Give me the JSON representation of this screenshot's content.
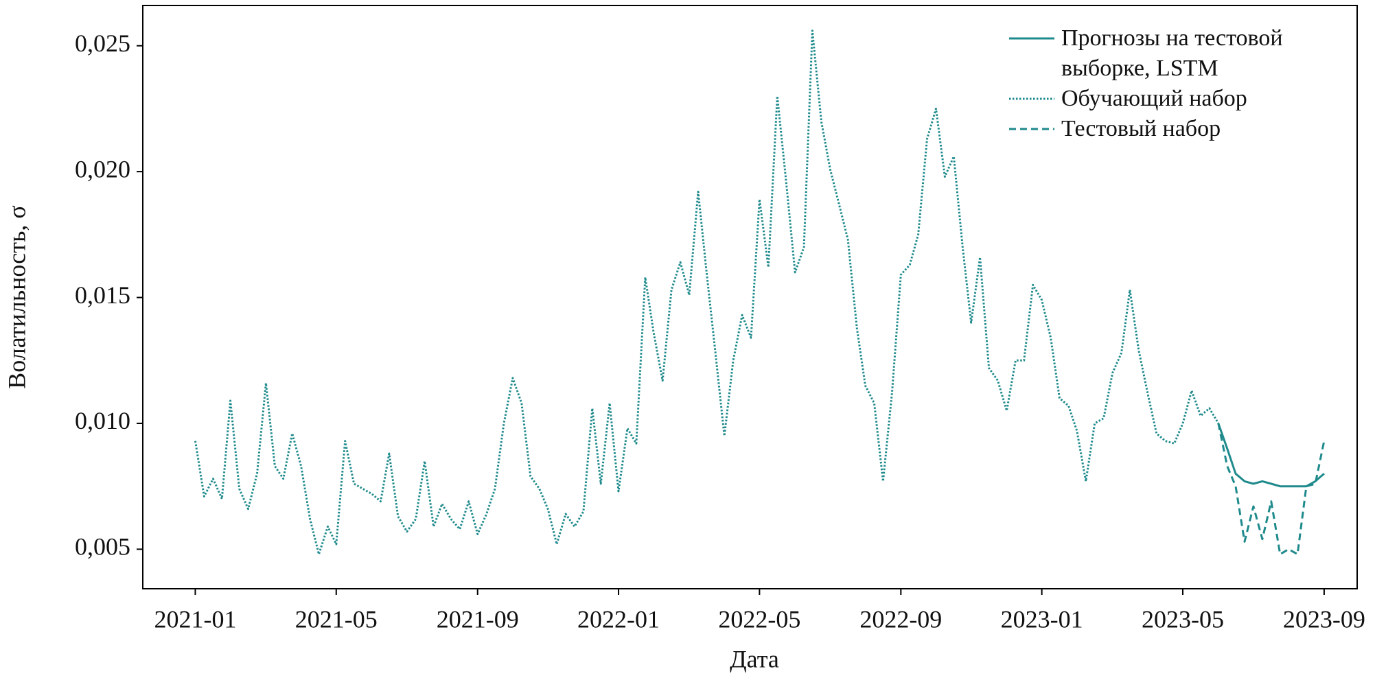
{
  "chart_data": {
    "type": "line",
    "xlabel": "Дата",
    "ylabel": "Волатильность, σ",
    "xlim": [
      2020.876,
      2023.745
    ],
    "ylim": [
      0.00343,
      0.0266
    ],
    "xticks": [
      {
        "value": 2021.0,
        "label": "2021-01"
      },
      {
        "value": 2021.333,
        "label": "2021-05"
      },
      {
        "value": 2021.667,
        "label": "2021-09"
      },
      {
        "value": 2022.0,
        "label": "2022-01"
      },
      {
        "value": 2022.333,
        "label": "2022-05"
      },
      {
        "value": 2022.667,
        "label": "2022-09"
      },
      {
        "value": 2023.0,
        "label": "2023-01"
      },
      {
        "value": 2023.333,
        "label": "2023-05"
      },
      {
        "value": 2023.667,
        "label": "2023-09"
      }
    ],
    "yticks": [
      {
        "value": 0.005,
        "label": "0,005"
      },
      {
        "value": 0.01,
        "label": "0,010"
      },
      {
        "value": 0.015,
        "label": "0,015"
      },
      {
        "value": 0.02,
        "label": "0,020"
      },
      {
        "value": 0.025,
        "label": "0,025"
      }
    ],
    "grid": false,
    "legend": "upper right",
    "series": [
      {
        "name": "Прогнозы на тестовой выборке, LSTM",
        "color": "#1f8a8c",
        "style": "solid",
        "x": [
          2023.417,
          2023.438,
          2023.458,
          2023.479,
          2023.5,
          2023.521,
          2023.542,
          2023.563,
          2023.583,
          2023.604,
          2023.625,
          2023.646,
          2023.667
        ],
        "values": [
          0.01,
          0.009,
          0.008,
          0.0077,
          0.0076,
          0.0077,
          0.0076,
          0.0075,
          0.0075,
          0.0075,
          0.0075,
          0.0077,
          0.008
        ]
      },
      {
        "name": "Обучающий набор",
        "color": "#1f8a8c",
        "style": "dotted",
        "x": [
          2021.0,
          2021.021,
          2021.042,
          2021.063,
          2021.083,
          2021.104,
          2021.125,
          2021.146,
          2021.167,
          2021.188,
          2021.208,
          2021.229,
          2021.25,
          2021.271,
          2021.292,
          2021.313,
          2021.333,
          2021.354,
          2021.375,
          2021.396,
          2021.417,
          2021.438,
          2021.458,
          2021.479,
          2021.5,
          2021.521,
          2021.542,
          2021.563,
          2021.583,
          2021.604,
          2021.625,
          2021.646,
          2021.667,
          2021.688,
          2021.708,
          2021.729,
          2021.75,
          2021.771,
          2021.792,
          2021.813,
          2021.833,
          2021.854,
          2021.875,
          2021.896,
          2021.917,
          2021.938,
          2021.958,
          2021.979,
          2022.0,
          2022.021,
          2022.042,
          2022.063,
          2022.083,
          2022.104,
          2022.125,
          2022.146,
          2022.167,
          2022.188,
          2022.208,
          2022.229,
          2022.25,
          2022.271,
          2022.292,
          2022.313,
          2022.333,
          2022.354,
          2022.375,
          2022.396,
          2022.417,
          2022.438,
          2022.458,
          2022.479,
          2022.5,
          2022.521,
          2022.542,
          2022.563,
          2022.583,
          2022.604,
          2022.625,
          2022.646,
          2022.667,
          2022.688,
          2022.708,
          2022.729,
          2022.75,
          2022.771,
          2022.792,
          2022.813,
          2022.833,
          2022.854,
          2022.875,
          2022.896,
          2022.917,
          2022.938,
          2022.958,
          2022.979,
          2023.0,
          2023.021,
          2023.042,
          2023.063,
          2023.083,
          2023.104,
          2023.125,
          2023.146,
          2023.167,
          2023.188,
          2023.208,
          2023.229,
          2023.25,
          2023.271,
          2023.292,
          2023.313,
          2023.333,
          2023.354,
          2023.375,
          2023.396,
          2023.417
        ],
        "values": [
          0.0093,
          0.0071,
          0.0078,
          0.007,
          0.0109,
          0.0074,
          0.0066,
          0.008,
          0.0116,
          0.0083,
          0.0078,
          0.0096,
          0.0083,
          0.0062,
          0.0048,
          0.0059,
          0.0052,
          0.0093,
          0.0076,
          0.0074,
          0.0072,
          0.0069,
          0.0088,
          0.0063,
          0.0057,
          0.0062,
          0.0085,
          0.0059,
          0.0068,
          0.0062,
          0.0058,
          0.0069,
          0.0056,
          0.0064,
          0.0074,
          0.01,
          0.0118,
          0.0108,
          0.0079,
          0.0074,
          0.0066,
          0.0052,
          0.0064,
          0.0059,
          0.0065,
          0.0106,
          0.0076,
          0.0108,
          0.0073,
          0.0098,
          0.0092,
          0.0158,
          0.0136,
          0.0117,
          0.0153,
          0.0164,
          0.0151,
          0.0192,
          0.016,
          0.0128,
          0.0095,
          0.0125,
          0.0143,
          0.0134,
          0.0189,
          0.0162,
          0.023,
          0.0196,
          0.016,
          0.017,
          0.0256,
          0.022,
          0.0201,
          0.0187,
          0.0173,
          0.0138,
          0.0115,
          0.0108,
          0.0077,
          0.0112,
          0.0159,
          0.0163,
          0.0175,
          0.0213,
          0.0225,
          0.0198,
          0.0206,
          0.017,
          0.014,
          0.0166,
          0.0122,
          0.0117,
          0.0105,
          0.0125,
          0.0125,
          0.0155,
          0.0149,
          0.0134,
          0.011,
          0.0107,
          0.0097,
          0.0077,
          0.01,
          0.0102,
          0.012,
          0.0128,
          0.0153,
          0.0129,
          0.0112,
          0.0096,
          0.0093,
          0.0092,
          0.01,
          0.0113,
          0.0103,
          0.0106,
          0.01
        ]
      },
      {
        "name": "Тестовый набор",
        "color": "#1f8a8c",
        "style": "dashed",
        "x": [
          2023.417,
          2023.438,
          2023.458,
          2023.479,
          2023.5,
          2023.521,
          2023.542,
          2023.563,
          2023.583,
          2023.604,
          2023.625,
          2023.646,
          2023.667
        ],
        "values": [
          0.01,
          0.0083,
          0.0075,
          0.0053,
          0.0067,
          0.0054,
          0.0069,
          0.0048,
          0.005,
          0.0048,
          0.0075,
          0.0076,
          0.0093
        ]
      }
    ]
  }
}
